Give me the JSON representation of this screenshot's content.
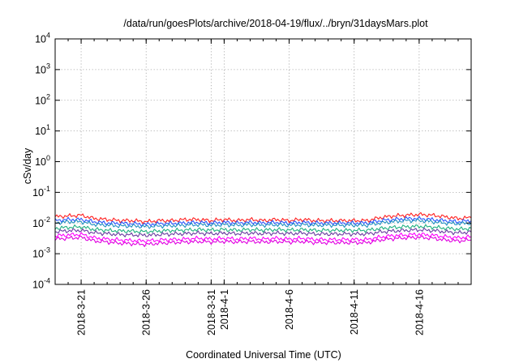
{
  "chart_data": {
    "type": "line",
    "title": "/data/run/goesPlots/archive/2018-04-19/flux/../bryn/31daysMars.plot",
    "xlabel": "Coordinated Universal Time (UTC)",
    "ylabel": "cSv/day",
    "yscale": "log",
    "ylim": [
      0.0001,
      10000
    ],
    "xlim": [
      "2018-03-19",
      "2018-04-20"
    ],
    "yticks": [
      {
        "base": "10",
        "exp": "-4",
        "value": 0.0001
      },
      {
        "base": "10",
        "exp": "-3",
        "value": 0.001
      },
      {
        "base": "10",
        "exp": "-2",
        "value": 0.01
      },
      {
        "base": "10",
        "exp": "-1",
        "value": 0.1
      },
      {
        "base": "10",
        "exp": "0",
        "value": 1
      },
      {
        "base": "10",
        "exp": "1",
        "value": 10
      },
      {
        "base": "10",
        "exp": "2",
        "value": 100
      },
      {
        "base": "10",
        "exp": "3",
        "value": 1000
      },
      {
        "base": "10",
        "exp": "4",
        "value": 10000
      }
    ],
    "xticks": [
      {
        "label": "2018-3-21",
        "date": "2018-03-21"
      },
      {
        "label": "2018-3-26",
        "date": "2018-03-26"
      },
      {
        "label": "2018-3-31",
        "date": "2018-03-31"
      },
      {
        "label": "2018-4-1",
        "date": "2018-04-01"
      },
      {
        "label": "2018-4-6",
        "date": "2018-04-06"
      },
      {
        "label": "2018-4-11",
        "date": "2018-04-11"
      },
      {
        "label": "2018-4-16",
        "date": "2018-04-16"
      }
    ],
    "grid": true,
    "x": [
      "2018-03-19",
      "2018-03-20",
      "2018-03-21",
      "2018-03-22",
      "2018-03-23",
      "2018-03-24",
      "2018-03-25",
      "2018-03-26",
      "2018-03-27",
      "2018-03-28",
      "2018-03-29",
      "2018-03-30",
      "2018-03-31",
      "2018-04-01",
      "2018-04-02",
      "2018-04-03",
      "2018-04-04",
      "2018-04-05",
      "2018-04-06",
      "2018-04-07",
      "2018-04-08",
      "2018-04-09",
      "2018-04-10",
      "2018-04-11",
      "2018-04-12",
      "2018-04-13",
      "2018-04-14",
      "2018-04-15",
      "2018-04-16",
      "2018-04-17",
      "2018-04-18",
      "2018-04-19",
      "2018-04-20"
    ],
    "series": [
      {
        "color": "#ff2020",
        "values": [
          0.016,
          0.017,
          0.018,
          0.014,
          0.013,
          0.012,
          0.012,
          0.011,
          0.012,
          0.012,
          0.013,
          0.013,
          0.012,
          0.013,
          0.012,
          0.013,
          0.012,
          0.013,
          0.012,
          0.013,
          0.012,
          0.012,
          0.012,
          0.012,
          0.012,
          0.015,
          0.017,
          0.018,
          0.019,
          0.018,
          0.016,
          0.014,
          0.015
        ]
      },
      {
        "color": "#2a55ff",
        "values": [
          0.012,
          0.013,
          0.013,
          0.011,
          0.01,
          0.0098,
          0.0095,
          0.009,
          0.0095,
          0.0098,
          0.01,
          0.0105,
          0.01,
          0.0105,
          0.01,
          0.0105,
          0.01,
          0.0105,
          0.01,
          0.0105,
          0.01,
          0.01,
          0.01,
          0.01,
          0.01,
          0.012,
          0.013,
          0.014,
          0.014,
          0.013,
          0.012,
          0.011,
          0.012
        ]
      },
      {
        "color": "#2090c0",
        "values": [
          0.01,
          0.011,
          0.011,
          0.009,
          0.0085,
          0.008,
          0.008,
          0.0076,
          0.008,
          0.0082,
          0.0085,
          0.0088,
          0.0085,
          0.0088,
          0.0085,
          0.0088,
          0.0085,
          0.0088,
          0.0085,
          0.0088,
          0.0085,
          0.0085,
          0.0085,
          0.0085,
          0.0085,
          0.01,
          0.011,
          0.012,
          0.012,
          0.011,
          0.01,
          0.0095,
          0.01
        ]
      },
      {
        "color": "#20b080",
        "values": [
          0.0068,
          0.0072,
          0.0075,
          0.0062,
          0.0058,
          0.0055,
          0.0054,
          0.0052,
          0.0055,
          0.0057,
          0.0059,
          0.0061,
          0.0059,
          0.0061,
          0.0059,
          0.0061,
          0.0059,
          0.0061,
          0.0059,
          0.0061,
          0.0058,
          0.0058,
          0.0058,
          0.0058,
          0.0058,
          0.0066,
          0.0072,
          0.0076,
          0.0078,
          0.0074,
          0.0068,
          0.0063,
          0.0067
        ]
      },
      {
        "color": "#6a3aa0",
        "values": [
          0.0052,
          0.0056,
          0.0058,
          0.0048,
          0.0045,
          0.0042,
          0.0041,
          0.004,
          0.0042,
          0.0044,
          0.0045,
          0.0047,
          0.0045,
          0.0047,
          0.0045,
          0.0047,
          0.0045,
          0.0047,
          0.0045,
          0.0047,
          0.0044,
          0.0044,
          0.0044,
          0.0044,
          0.0044,
          0.0051,
          0.0055,
          0.0058,
          0.006,
          0.0057,
          0.0052,
          0.0048,
          0.0051
        ]
      },
      {
        "color": "#ff00ff",
        "values": [
          0.0038,
          0.0041,
          0.0043,
          0.0033,
          0.003,
          0.0028,
          0.0027,
          0.0026,
          0.0028,
          0.0029,
          0.003,
          0.0032,
          0.003,
          0.0032,
          0.003,
          0.0032,
          0.003,
          0.0032,
          0.003,
          0.0032,
          0.0029,
          0.0029,
          0.0029,
          0.0029,
          0.0029,
          0.0035,
          0.0039,
          0.0041,
          0.0043,
          0.004,
          0.0036,
          0.0033,
          0.0036
        ]
      },
      {
        "color": "#e000e0",
        "values": [
          0.003,
          0.0032,
          0.0034,
          0.0026,
          0.0024,
          0.0022,
          0.0021,
          0.002,
          0.0022,
          0.0023,
          0.0024,
          0.0025,
          0.0024,
          0.0025,
          0.0024,
          0.0025,
          0.0024,
          0.0025,
          0.0024,
          0.0025,
          0.0023,
          0.0023,
          0.0023,
          0.0023,
          0.0023,
          0.0028,
          0.0031,
          0.0033,
          0.0034,
          0.0032,
          0.0028,
          0.0026,
          0.0028
        ]
      }
    ]
  }
}
